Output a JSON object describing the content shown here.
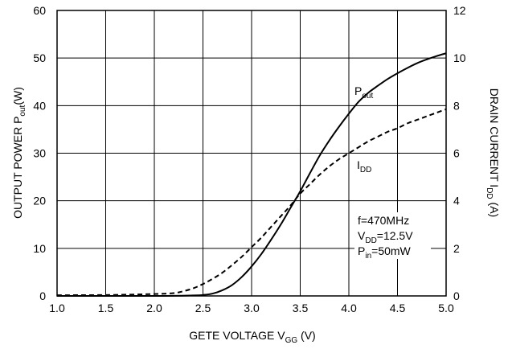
{
  "chart_data": {
    "type": "line",
    "x_axis": {
      "label": "GETE VOLTAGE V",
      "label_sub": "GG",
      "label_unit": " (V)",
      "range": [
        1.0,
        5.0
      ],
      "ticks": [
        1.0,
        1.5,
        2.0,
        2.5,
        3.0,
        3.5,
        4.0,
        4.5,
        5.0
      ],
      "tick_labels": [
        "1.0",
        "1.5",
        "2.0",
        "2.5",
        "3.0",
        "3.5",
        "4.0",
        "4.5",
        "5.0"
      ]
    },
    "y_left": {
      "label": "OUTPUT POWER P",
      "label_sub": "out",
      "label_unit": "(W)",
      "range": [
        0,
        60
      ],
      "ticks": [
        0,
        10,
        20,
        30,
        40,
        50,
        60
      ],
      "tick_labels": [
        "0",
        "10",
        "20",
        "30",
        "40",
        "50",
        "60"
      ]
    },
    "y_right": {
      "label": "DRAIN CURRENT I",
      "label_sub": "DD",
      "label_unit": " (A)",
      "range": [
        0,
        12
      ],
      "ticks": [
        0,
        2,
        4,
        6,
        8,
        10,
        12
      ],
      "tick_labels": [
        "0",
        "2",
        "4",
        "6",
        "8",
        "10",
        "12"
      ]
    },
    "grid": true,
    "series": [
      {
        "name": "P",
        "name_sub": "out",
        "axis": "left",
        "style": "solid",
        "x": [
          1.0,
          2.0,
          2.4,
          2.5,
          2.6,
          2.7,
          2.8,
          2.9,
          3.0,
          3.1,
          3.2,
          3.3,
          3.4,
          3.5,
          3.6,
          3.7,
          3.8,
          3.9,
          4.0,
          4.1,
          4.2,
          4.3,
          4.4,
          4.5,
          4.6,
          4.7,
          4.8,
          4.9,
          5.0
        ],
        "y": [
          0,
          0,
          0.1,
          0.2,
          0.5,
          1.2,
          2.3,
          4.0,
          6.2,
          8.8,
          11.8,
          15.0,
          18.5,
          22.0,
          25.8,
          29.5,
          32.7,
          35.6,
          38.3,
          40.8,
          42.7,
          44.2,
          45.6,
          46.8,
          47.9,
          48.9,
          49.7,
          50.4,
          51.0
        ]
      },
      {
        "name": "I",
        "name_sub": "DD",
        "axis": "right",
        "style": "dashed",
        "x": [
          1.0,
          1.5,
          2.0,
          2.2,
          2.3,
          2.4,
          2.5,
          2.6,
          2.7,
          2.8,
          2.9,
          3.0,
          3.1,
          3.2,
          3.3,
          3.4,
          3.5,
          3.6,
          3.7,
          3.8,
          3.9,
          4.0,
          4.1,
          4.2,
          4.3,
          4.4,
          4.5,
          4.6,
          4.7,
          4.8,
          4.9,
          5.0
        ],
        "y": [
          0.03,
          0.04,
          0.08,
          0.12,
          0.2,
          0.32,
          0.5,
          0.72,
          0.98,
          1.3,
          1.65,
          2.05,
          2.45,
          2.9,
          3.35,
          3.8,
          4.3,
          4.7,
          5.1,
          5.45,
          5.75,
          6.0,
          6.25,
          6.5,
          6.7,
          6.9,
          7.05,
          7.25,
          7.4,
          7.55,
          7.7,
          7.85
        ]
      }
    ],
    "conditions": {
      "line1": "f=470MHz",
      "line2_main": "V",
      "line2_sub": "DD",
      "line2_rest": "=12.5V",
      "line3_main": "P",
      "line3_sub": "in",
      "line3_rest": "=50mW"
    }
  }
}
